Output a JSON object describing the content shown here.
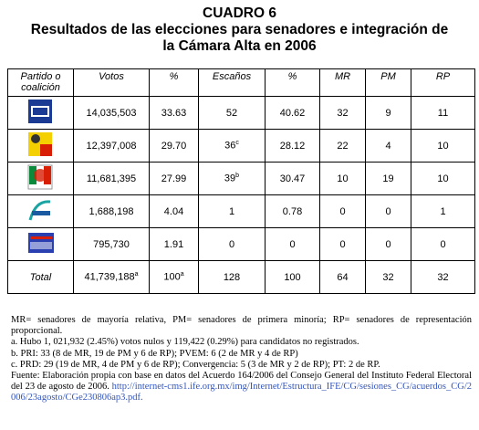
{
  "header": {
    "title": "CUADRO 6",
    "subtitle": "Resultados de las elecciones para senadores e integración de la Cámara Alta en 2006"
  },
  "table": {
    "columns": [
      "Partido o coalición",
      "Votos",
      "%",
      "Escaños",
      "%",
      "MR",
      "PM",
      "RP"
    ],
    "rows": [
      [
        "",
        "14,035,503",
        "33.63",
        "52",
        "40.62",
        "32",
        "9",
        "11"
      ],
      [
        "",
        "12,397,008",
        "29.70",
        {
          "text": "36",
          "sup": "c"
        },
        "28.12",
        "22",
        "4",
        "10"
      ],
      [
        "",
        "11,681,395",
        "27.99",
        {
          "text": "39",
          "sup": "b"
        },
        "30.47",
        "10",
        "19",
        "10"
      ],
      [
        "",
        "1,688,198",
        "4.04",
        "1",
        "0.78",
        "0",
        "0",
        "1"
      ],
      [
        "",
        "795,730",
        "1.91",
        "0",
        "0",
        "0",
        "0",
        "0"
      ],
      [
        "Total",
        {
          "text": "41,739,188",
          "sup": "a"
        },
        {
          "text": "100",
          "sup": "a"
        },
        "128",
        "100",
        "64",
        "32",
        "32"
      ]
    ]
  },
  "notes": [
    "MR= senadores de mayoría relativa, PM= senadores de primera minoría; RP= senadores de representación proporcional.",
    "a. Hubo 1, 021,932 (2.45%) votos nulos y 119,422 (0.29%) para candidatos no registrados.",
    "b. PRI: 33 (8 de MR, 19 de PM y 6 de RP); PVEM: 6 (2 de MR y 4 de RP)",
    "c. PRD: 29 (19 de MR, 4 de PM y 6 de RP); Convergencia: 5 (3 de MR y 2 de RP); PT: 2 de RP."
  ],
  "source": {
    "text": "Fuente: Elaboración propia con base en datos del Acuerdo 164/2006 del Consejo General del Instituto Federal Electoral del 23 de agosto de 2006.",
    "url": "http://internet-cms1.ife.org.mx/img/Internet/Estructura_IFE/CG/sesiones_CG/acuerdos_CG/2006/23agosto/CGe230806ap3.pdf."
  }
}
